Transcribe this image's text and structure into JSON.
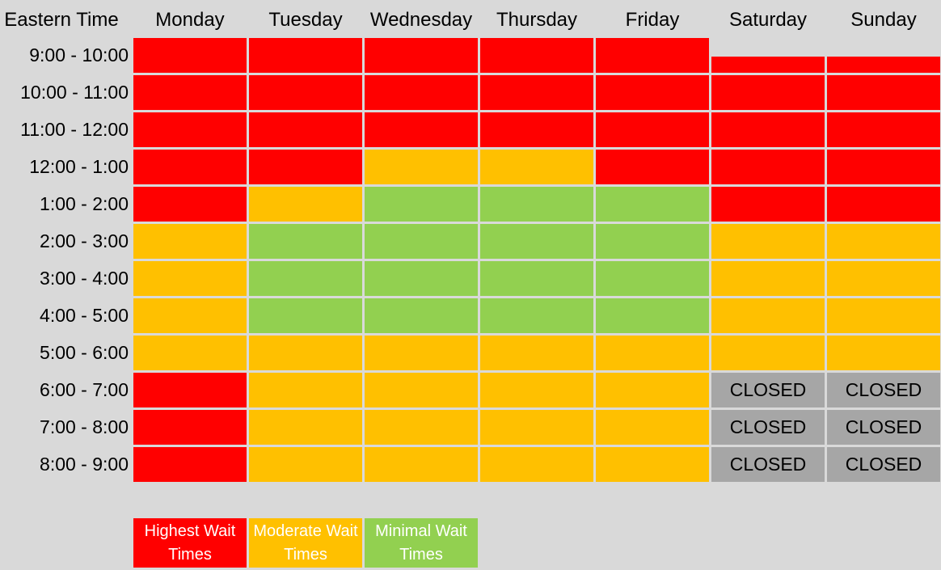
{
  "colors": {
    "high": "#ff0000",
    "moderate": "#ffc000",
    "minimal": "#92d050",
    "closed": "#a6a6a6",
    "background": "#d9d9d9"
  },
  "chart_data": {
    "type": "heatmap",
    "corner_label": "Eastern Time",
    "days": [
      "Monday",
      "Tuesday",
      "Wednesday",
      "Thursday",
      "Friday",
      "Saturday",
      "Sunday"
    ],
    "time_slots": [
      "9:00 - 10:00",
      "10:00 - 11:00",
      "11:00 - 12:00",
      "12:00 - 1:00",
      "1:00 - 2:00",
      "2:00 - 3:00",
      "3:00 - 4:00",
      "4:00 - 5:00",
      "5:00 - 6:00",
      "6:00 - 7:00",
      "7:00 - 8:00",
      "8:00 - 9:00"
    ],
    "closed_label": "CLOSED",
    "wait_levels": [
      [
        "high",
        "high",
        "high",
        "high",
        "high",
        "high",
        "high"
      ],
      [
        "high",
        "high",
        "high",
        "high",
        "high",
        "high",
        "high"
      ],
      [
        "high",
        "high",
        "high",
        "high",
        "high",
        "high",
        "high"
      ],
      [
        "high",
        "high",
        "moderate",
        "moderate",
        "high",
        "high",
        "high"
      ],
      [
        "high",
        "moderate",
        "minimal",
        "minimal",
        "minimal",
        "high",
        "high"
      ],
      [
        "moderate",
        "minimal",
        "minimal",
        "minimal",
        "minimal",
        "moderate",
        "moderate"
      ],
      [
        "moderate",
        "minimal",
        "minimal",
        "minimal",
        "minimal",
        "moderate",
        "moderate"
      ],
      [
        "moderate",
        "minimal",
        "minimal",
        "minimal",
        "minimal",
        "moderate",
        "moderate"
      ],
      [
        "moderate",
        "moderate",
        "moderate",
        "moderate",
        "moderate",
        "moderate",
        "moderate"
      ],
      [
        "high",
        "moderate",
        "moderate",
        "moderate",
        "moderate",
        "closed",
        "closed"
      ],
      [
        "high",
        "moderate",
        "moderate",
        "moderate",
        "moderate",
        "closed",
        "closed"
      ],
      [
        "high",
        "moderate",
        "moderate",
        "moderate",
        "moderate",
        "closed",
        "closed"
      ]
    ],
    "legend": [
      {
        "level": "high",
        "label": "Highest Wait Times"
      },
      {
        "level": "moderate",
        "label": "Moderate Wait Times"
      },
      {
        "level": "minimal",
        "label": "Minimal Wait Times"
      }
    ]
  }
}
